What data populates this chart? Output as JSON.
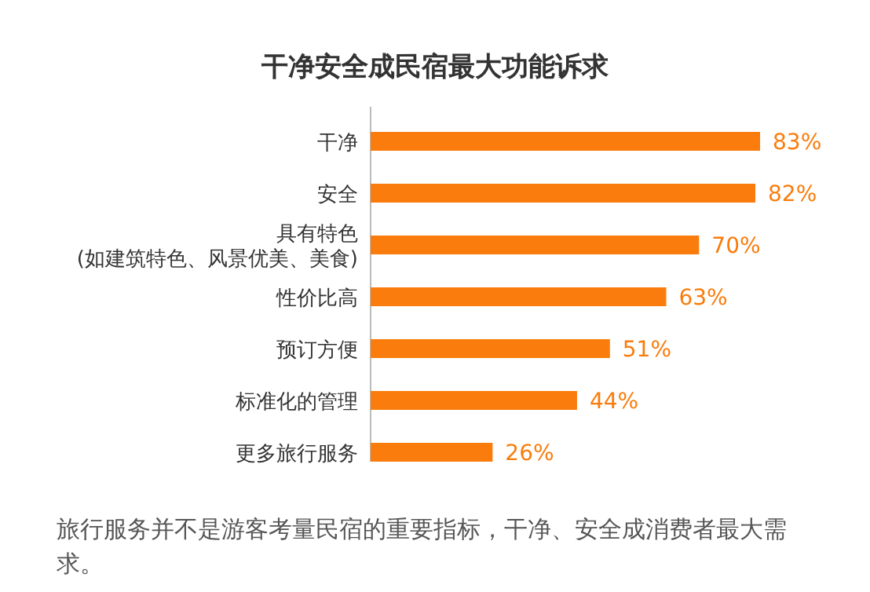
{
  "chart_data": {
    "type": "bar",
    "orientation": "horizontal",
    "title": "干净安全成民宿最大功能诉求",
    "categories": [
      "干净",
      "安全",
      "具有特色\n(如建筑特色、风景优美、美食)",
      "性价比高",
      "预订方便",
      "标准化的管理",
      "更多旅行服务"
    ],
    "values": [
      83,
      82,
      70,
      63,
      51,
      44,
      26
    ],
    "value_labels": [
      "83%",
      "82%",
      "70%",
      "63%",
      "51%",
      "44%",
      "26%"
    ],
    "color": "#f97c0c",
    "annotations": [
      "旅行服务并不是游客考量民宿的重要指标，干净、安全成消费者最大需求。"
    ]
  }
}
